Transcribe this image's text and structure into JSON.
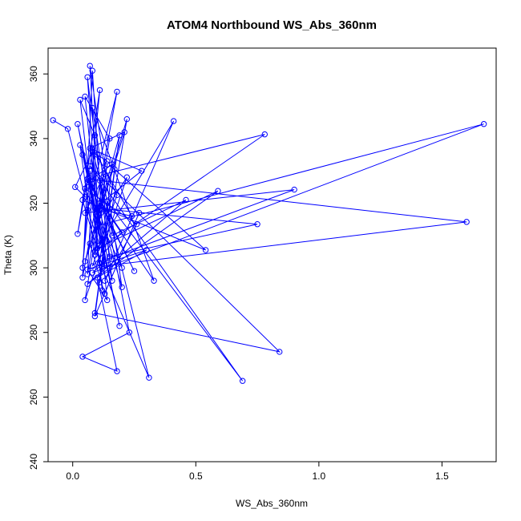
{
  "chart_data": {
    "type": "line",
    "title": "ATOM4 Northbound WS_Abs_360nm",
    "xlabel": "WS_Abs_360nm",
    "ylabel": "Theta (K)",
    "xlim": [
      -0.1,
      1.72
    ],
    "ylim": [
      240,
      368
    ],
    "xticks": [
      0.0,
      0.5,
      1.0,
      1.5
    ],
    "xtick_labels": [
      "0.0",
      "0.5",
      "1.0",
      "1.5"
    ],
    "yticks": [
      240,
      260,
      280,
      300,
      320,
      340,
      360
    ],
    "ytick_labels": [
      "240",
      "260",
      "280",
      "300",
      "320",
      "340",
      "360"
    ],
    "grid": false,
    "legend": "none",
    "line_color": "#0000ff",
    "marker": "open-circle",
    "series": [
      {
        "x": [
          -0.08,
          -0.02,
          0.05,
          0.01,
          0.08,
          0.02,
          0.11,
          0.04,
          0.07,
          0.12,
          0.03,
          0.09,
          0.06,
          0.15,
          0.05,
          0.1,
          0.02,
          0.13,
          0.08,
          0.04,
          0.18,
          0.06,
          0.11,
          0.07,
          0.2,
          0.03,
          0.09,
          0.14,
          0.05,
          0.22,
          0.1,
          0.06,
          0.16,
          0.08,
          0.12,
          0.04,
          0.19,
          0.07,
          0.25,
          0.11,
          0.09,
          0.78,
          0.13,
          0.05,
          0.9,
          0.15,
          0.08,
          1.67,
          0.1,
          0.06,
          1.6,
          0.12,
          0.04,
          0.54,
          0.17,
          0.09,
          0.84,
          0.07,
          0.69,
          0.14,
          0.11,
          0.31,
          0.08,
          0.2,
          0.05,
          0.26,
          0.13,
          0.41,
          0.1,
          0.59,
          0.06,
          0.46,
          0.16,
          0.08,
          0.33,
          0.12,
          0.21,
          0.07,
          0.28,
          0.09,
          0.75,
          0.15,
          0.11,
          0.23,
          0.04,
          0.18,
          0.1,
          0.3,
          0.06,
          0.14,
          0.08,
          0.24,
          0.12,
          0.05,
          0.19,
          0.09,
          0.27,
          0.13,
          0.07,
          0.22,
          0.11,
          0.16,
          0.06,
          0.2,
          0.08,
          0.18,
          0.1,
          0.14
        ],
        "y": [
          345.7,
          343.0,
          322.0,
          325.0,
          336.0,
          310.5,
          355.0,
          300.0,
          330.0,
          293.0,
          352.0,
          341.0,
          298.0,
          340.0,
          353.0,
          316.0,
          344.5,
          301.0,
          361.0,
          297.0,
          354.5,
          318.0,
          307.0,
          362.5,
          294.0,
          338.0,
          304.0,
          332.0,
          290.0,
          328.0,
          314.0,
          359.0,
          296.0,
          326.0,
          309.0,
          335.0,
          282.0,
          327.0,
          299.0,
          320.0,
          305.0,
          341.3,
          329.0,
          317.0,
          324.2,
          303.0,
          298.5,
          344.5,
          313.0,
          327.5,
          314.2,
          300.5,
          321.0,
          305.5,
          330.5,
          286.0,
          274.0,
          331.5,
          265.0,
          320.5,
          301.5,
          266.0,
          336.5,
          300.0,
          324.5,
          313.5,
          296.0,
          345.4,
          306.0,
          323.8,
          295.0,
          321.0,
          310.0,
          349.5,
          296.0,
          319.5,
          342.0,
          337.0,
          330.0,
          318.5,
          313.5,
          303.5,
          327.0,
          280.0,
          272.5,
          268.0,
          297.0,
          305.5,
          299.5,
          290.0,
          337.0,
          316.0,
          318.0,
          302.0,
          341.0,
          285.0,
          317.0,
          292.0,
          307.5,
          346.0,
          295.5,
          332.0,
          326.5,
          311.0,
          300.5,
          322.5,
          335.0,
          333.0
        ]
      }
    ]
  }
}
